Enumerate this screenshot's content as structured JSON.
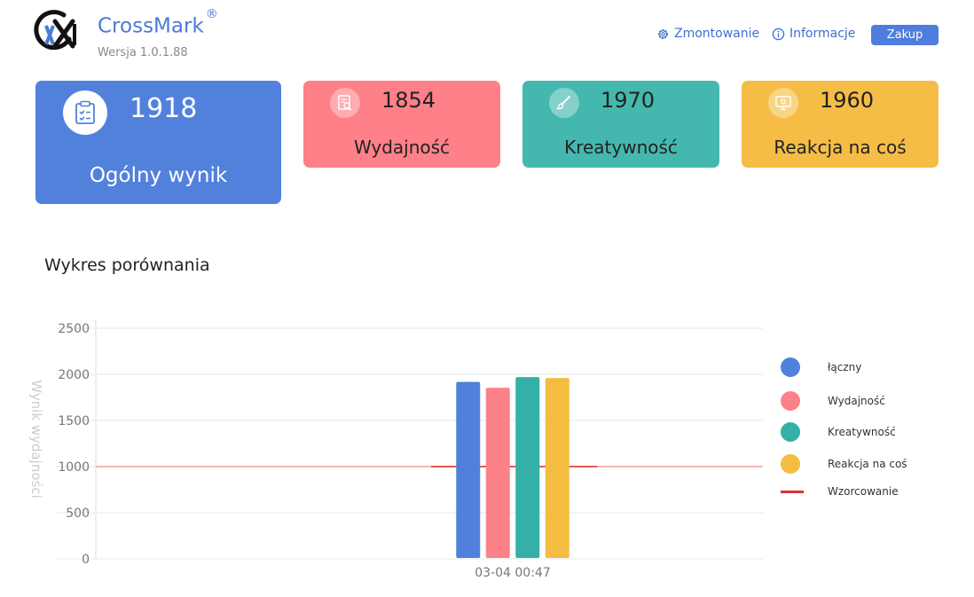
{
  "app": {
    "name": "CrossMark",
    "trademark": "®",
    "version": "Wersja 1.0.1.88"
  },
  "header": {
    "mount_label": "Zmontowanie",
    "info_label": "Informacje",
    "buy_label": "Zakup"
  },
  "cards": {
    "overall": {
      "score": "1918",
      "label": "Ogólny wynik",
      "icon": "clipboard-check-icon",
      "color": "#5281dc"
    },
    "performance": {
      "score": "1854",
      "label": "Wydajność",
      "icon": "document-search-icon",
      "color": "#ff8089"
    },
    "creativity": {
      "score": "1970",
      "label": "Kreatywność",
      "icon": "paintbrush-icon",
      "color": "#44b8ae"
    },
    "responsiveness": {
      "score": "1960",
      "label": "Reakcja na coś",
      "icon": "monitor-gear-icon",
      "color": "#f5bd45"
    }
  },
  "section_title": "Wykres porównania",
  "chart_data": {
    "type": "bar",
    "ylabel": "Wynik wydajności",
    "ylim": [
      0,
      2500
    ],
    "yticks": [
      0,
      500,
      1000,
      1500,
      2000,
      2500
    ],
    "categories": [
      "03-04 00:47"
    ],
    "series": [
      {
        "name": "łączny",
        "values": [
          1918
        ],
        "color": "#5180db"
      },
      {
        "name": "Wydajność",
        "values": [
          1854
        ],
        "color": "#fc8189"
      },
      {
        "name": "Kreatywność",
        "values": [
          1970
        ],
        "color": "#33b0a7"
      },
      {
        "name": "Reakcja na coś",
        "values": [
          1960
        ],
        "color": "#f4bd42"
      }
    ],
    "baseline": {
      "name": "Wzorcowanie",
      "value": 1000,
      "color": "#e03030"
    },
    "grid": true,
    "legend_position": "right"
  }
}
